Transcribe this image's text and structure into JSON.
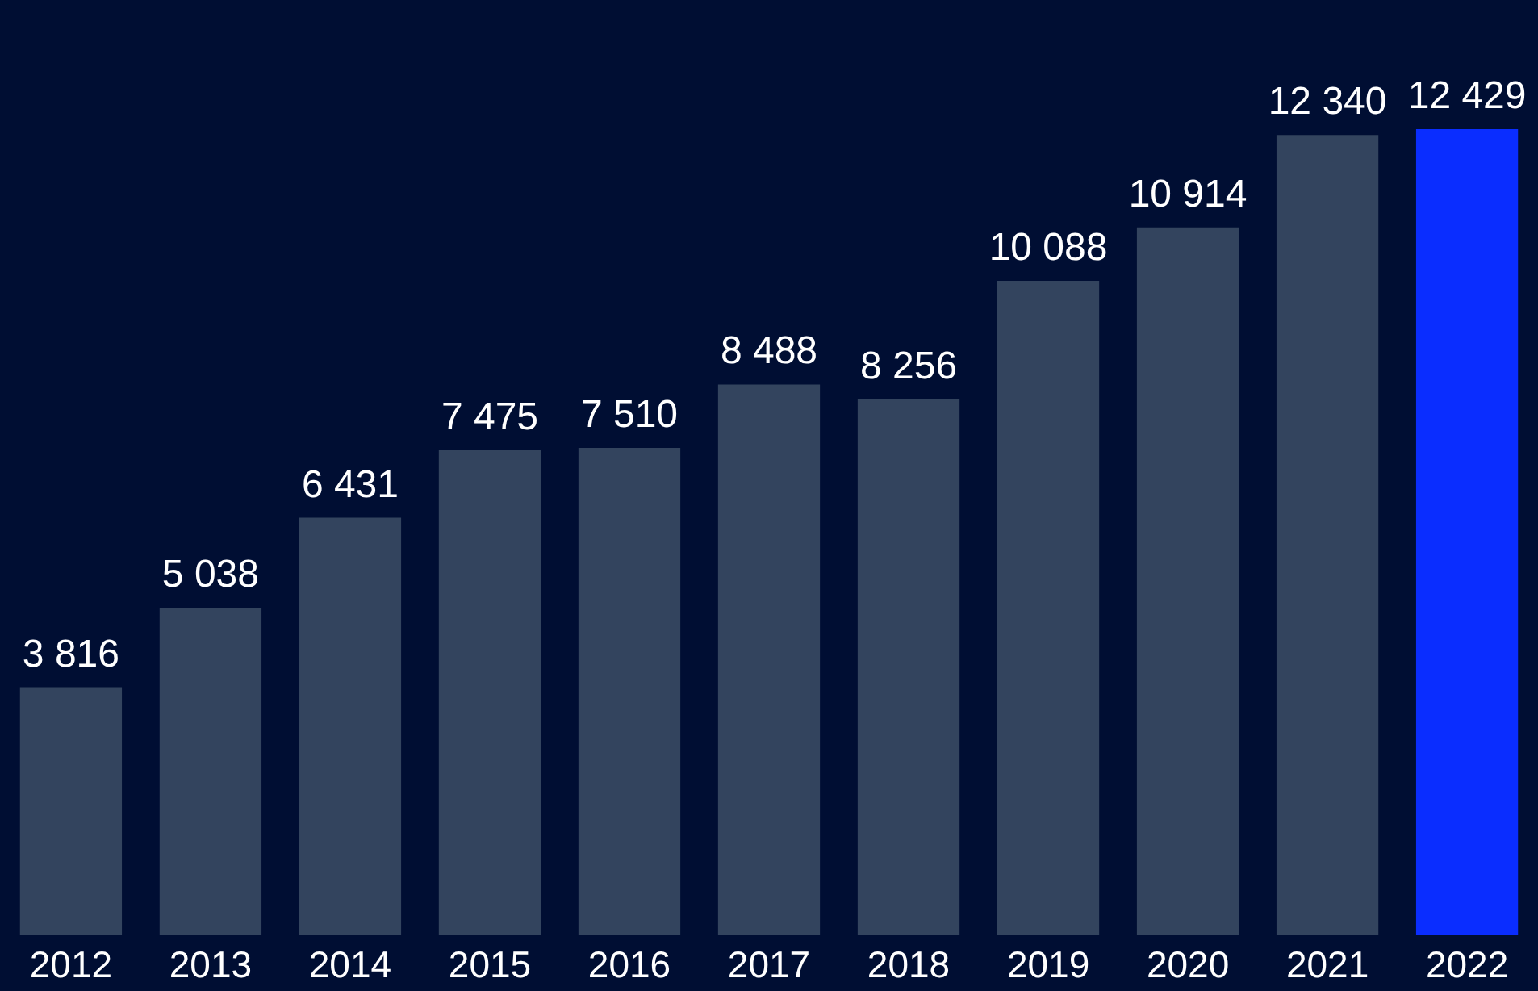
{
  "chart_data": {
    "type": "bar",
    "categories": [
      "2012",
      "2013",
      "2014",
      "2015",
      "2016",
      "2017",
      "2018",
      "2019",
      "2020",
      "2021",
      "2022"
    ],
    "values": [
      3816,
      5038,
      6431,
      7475,
      7510,
      8488,
      8256,
      10088,
      10914,
      12340,
      12429
    ],
    "value_labels": [
      "3 816",
      "5 038",
      "6 431",
      "7 475",
      "7 510",
      "8 488",
      "8 256",
      "10 088",
      "10 914",
      "12 340",
      "12 429"
    ],
    "colors": [
      "#33445e",
      "#33445e",
      "#33445e",
      "#33445e",
      "#33445e",
      "#33445e",
      "#33445e",
      "#33445e",
      "#33445e",
      "#33445e",
      "#0a2dff"
    ]
  }
}
